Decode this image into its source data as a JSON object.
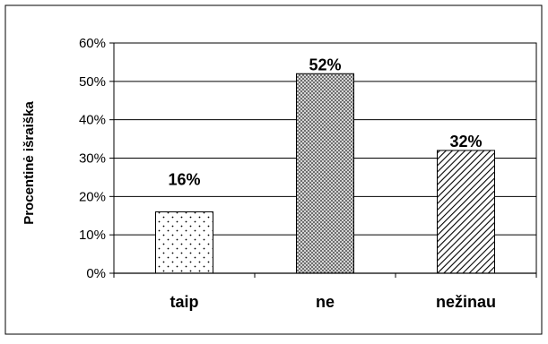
{
  "chart_data": {
    "type": "bar",
    "title": "",
    "xlabel": "",
    "ylabel": "Procentinė išraiška",
    "ylim": [
      0,
      60
    ],
    "yticks": [
      "0%",
      "10%",
      "20%",
      "30%",
      "40%",
      "50%",
      "60%"
    ],
    "grid": true,
    "categories": [
      "taip",
      "ne",
      "nežinau"
    ],
    "values": [
      16,
      52,
      32
    ],
    "data_labels": [
      "16%",
      "52%",
      "32%"
    ],
    "patterns": [
      "dots",
      "crosshatch",
      "diagonal"
    ]
  }
}
